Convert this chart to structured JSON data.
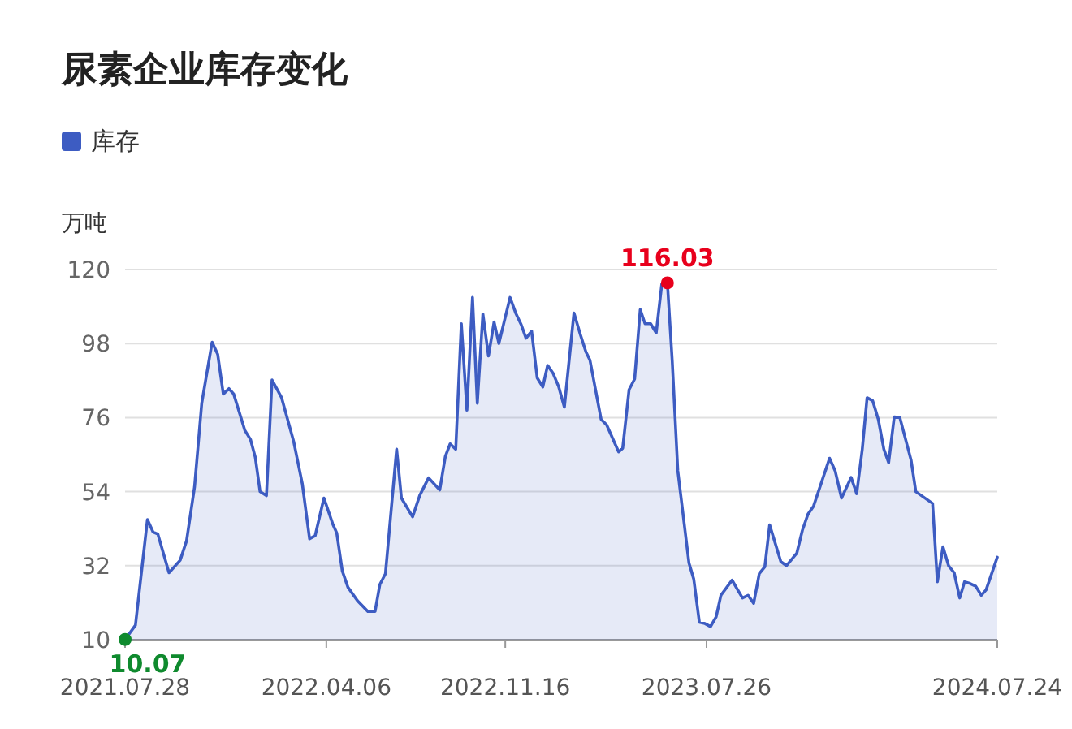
{
  "chart_data": {
    "type": "area",
    "title": "尿素企业库存变化",
    "ylabel": "万吨",
    "legend": "top left",
    "grid": "y",
    "xlim": [
      "2021-07-28",
      "2024-07-24"
    ],
    "xticks": [
      {
        "value": "2021-07-28",
        "label": "2021.07.28"
      },
      {
        "value": "2022-04-06",
        "label": "2022.04.06"
      },
      {
        "value": "2022-11-16",
        "label": "2022.11.16"
      },
      {
        "value": "2023-07-26",
        "label": "2023.07.26"
      },
      {
        "value": "2024-07-24",
        "label": "2024.07.24"
      }
    ],
    "ylim": [
      10,
      120
    ],
    "yticks": [
      10,
      32,
      54,
      76,
      98,
      120
    ],
    "annotations": [
      {
        "text": "116.03",
        "x": "2023-06-07",
        "y": 116.03
      },
      {
        "text": "10.07",
        "x": "2021-07-28",
        "y": 10.07
      }
    ],
    "x": [
      "2021-07-28",
      "2021-08-10",
      "2021-08-25",
      "2021-09-01",
      "2021-09-07",
      "2021-09-21",
      "2021-10-05",
      "2021-10-13",
      "2021-10-23",
      "2021-11-01",
      "2021-11-14",
      "2021-11-21",
      "2021-11-28",
      "2021-12-05",
      "2021-12-11",
      "2021-12-25",
      "2022-01-01",
      "2022-01-07",
      "2022-01-13",
      "2022-01-21",
      "2022-01-28",
      "2022-02-09",
      "2022-02-24",
      "2022-03-07",
      "2022-03-16",
      "2022-03-23",
      "2022-04-03",
      "2022-04-14",
      "2022-04-19",
      "2022-04-26",
      "2022-05-03",
      "2022-05-15",
      "2022-05-28",
      "2022-06-06",
      "2022-06-12",
      "2022-06-19",
      "2022-07-03",
      "2022-07-09",
      "2022-07-23",
      "2022-08-01",
      "2022-08-12",
      "2022-08-26",
      "2022-09-02",
      "2022-09-08",
      "2022-09-15",
      "2022-09-22",
      "2022-09-29",
      "2022-10-06",
      "2022-10-12",
      "2022-10-19",
      "2022-10-26",
      "2022-11-02",
      "2022-11-08",
      "2022-11-22",
      "2022-11-29",
      "2022-12-06",
      "2022-12-12",
      "2022-12-19",
      "2022-12-26",
      "2023-01-02",
      "2023-01-08",
      "2023-01-15",
      "2023-01-22",
      "2023-01-29",
      "2023-02-10",
      "2023-02-18",
      "2023-02-25",
      "2023-03-02",
      "2023-03-16",
      "2023-03-23",
      "2023-04-07",
      "2023-04-12",
      "2023-04-20",
      "2023-04-27",
      "2023-05-04",
      "2023-05-10",
      "2023-05-17",
      "2023-05-24",
      "2023-05-31",
      "2023-06-07",
      "2023-06-13",
      "2023-06-20",
      "2023-07-04",
      "2023-07-10",
      "2023-07-17",
      "2023-07-24",
      "2023-07-31",
      "2023-08-07",
      "2023-08-13",
      "2023-08-27",
      "2023-09-03",
      "2023-09-09",
      "2023-09-16",
      "2023-09-23",
      "2023-09-30",
      "2023-10-07",
      "2023-10-13",
      "2023-10-27",
      "2023-11-03",
      "2023-11-16",
      "2023-11-23",
      "2023-11-30",
      "2023-12-07",
      "2023-12-27",
      "2024-01-03",
      "2024-01-11",
      "2024-01-23",
      "2024-01-30",
      "2024-02-06",
      "2024-02-12",
      "2024-02-19",
      "2024-02-26",
      "2024-03-04",
      "2024-03-10",
      "2024-03-17",
      "2024-03-24",
      "2024-04-07",
      "2024-04-13",
      "2024-05-04",
      "2024-05-10",
      "2024-05-17",
      "2024-05-24",
      "2024-05-31",
      "2024-06-07",
      "2024-06-13",
      "2024-06-20",
      "2024-06-27",
      "2024-07-04",
      "2024-07-10",
      "2024-07-24"
    ],
    "series": [
      {
        "name": "库存",
        "color": "#3d5cc2",
        "values": [
          10.07,
          14.3,
          45.7,
          42,
          41.4,
          29.9,
          33.6,
          39.4,
          55.4,
          80.3,
          98.4,
          94.8,
          83,
          84.6,
          83,
          72.2,
          69.5,
          64.2,
          54,
          52.8,
          87.2,
          81.9,
          69,
          56.2,
          40,
          40.9,
          52.1,
          44.4,
          41.7,
          30.4,
          25.6,
          21.6,
          18.4,
          18.4,
          26.4,
          29.6,
          66.6,
          52.1,
          46.5,
          52.9,
          58.1,
          54.5,
          64.5,
          68.2,
          66.6,
          103.9,
          78.2,
          111.7,
          80.3,
          106.8,
          94.3,
          104.4,
          98,
          111.7,
          107.1,
          103.6,
          99.6,
          101.7,
          87.8,
          85.1,
          91.5,
          89.1,
          85.1,
          79.1,
          107.1,
          100.7,
          95.5,
          93.1,
          75.5,
          73.8,
          65.8,
          66.9,
          84.3,
          87.5,
          108.1,
          103.9,
          103.9,
          101.2,
          115.7,
          116.03,
          93.1,
          60.2,
          32.8,
          28,
          15.2,
          14.8,
          13.9,
          16.8,
          23.2,
          27.7,
          24.8,
          22.4,
          23.2,
          20.8,
          29.6,
          31.7,
          44.1,
          33.2,
          32,
          35.7,
          42.5,
          47.3,
          49.7,
          63.9,
          60.2,
          52.1,
          58.2,
          53.4,
          66.6,
          81.9,
          81,
          75.5,
          66.6,
          62.6,
          76.2,
          76,
          63.4,
          54,
          50.5,
          27.2,
          37.6,
          32,
          29.9,
          22.4,
          27.2,
          26.7,
          25.9,
          23.2,
          24.8,
          34.5
        ]
      }
    ]
  }
}
